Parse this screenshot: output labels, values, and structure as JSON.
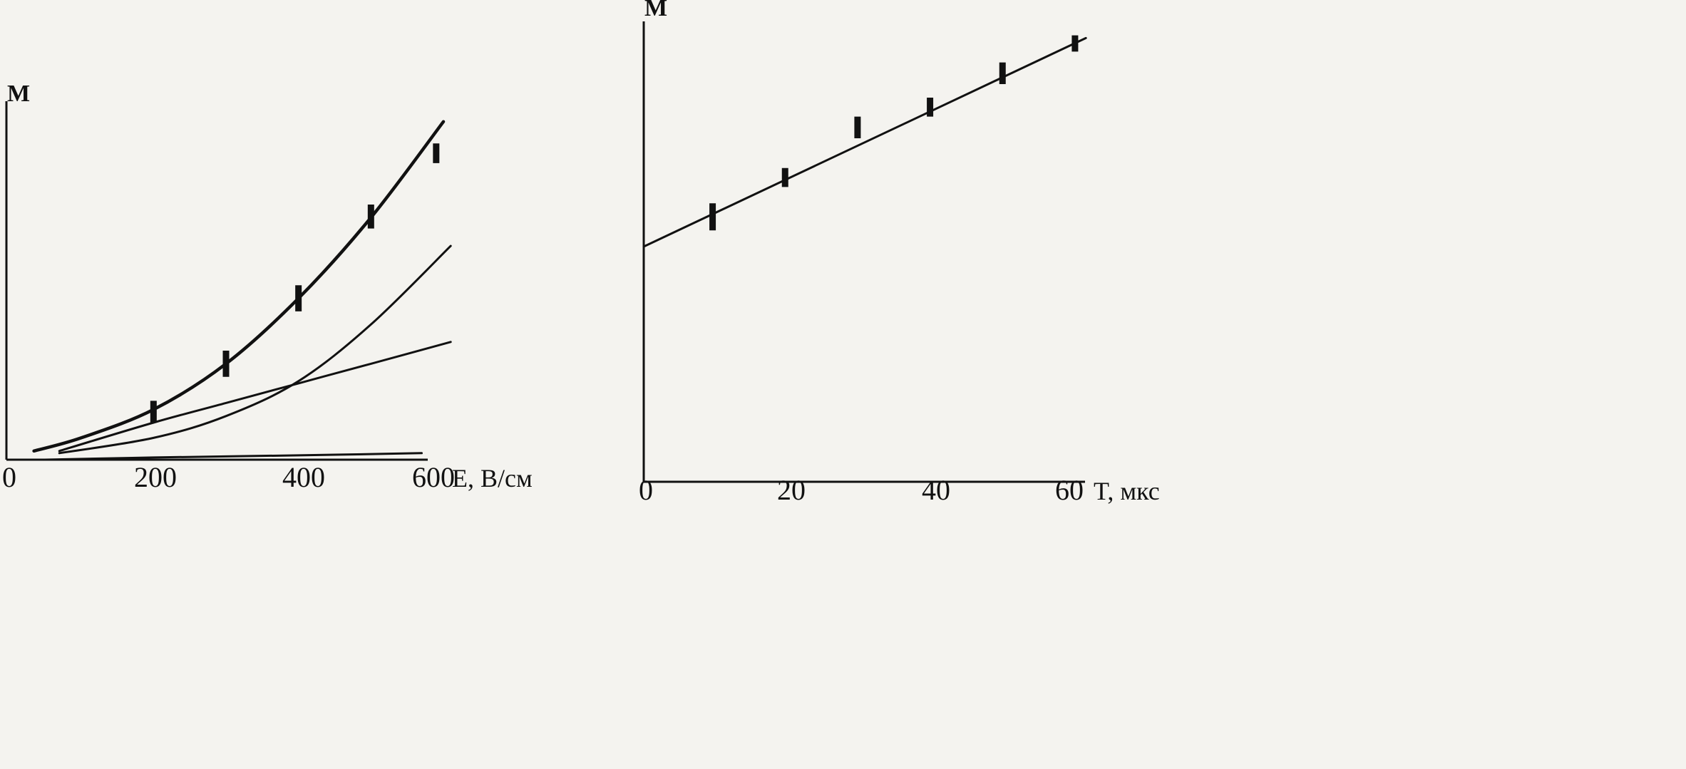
{
  "chart_data": [
    {
      "type": "line",
      "ylabel": "M",
      "xlabel": "E, В/см",
      "xlim": [
        0,
        600
      ],
      "x_ticks": [
        "0",
        "200",
        "400",
        "600"
      ],
      "grid": false,
      "curves": [
        {
          "style": "thick",
          "x": [
            35,
            100,
            200,
            300,
            400,
            500,
            600
          ],
          "y": [
            0.4,
            1.0,
            2.3,
            4.4,
            7.4,
            11.1,
            15.5
          ]
        },
        {
          "style": "thin",
          "x": [
            70,
            200,
            300,
            400,
            500,
            610
          ],
          "y": [
            0.3,
            1.0,
            2.0,
            3.6,
            6.2,
            9.8
          ]
        },
        {
          "style": "thin",
          "x": [
            70,
            200,
            300,
            400,
            500,
            610
          ],
          "y": [
            0.4,
            1.7,
            2.6,
            3.5,
            4.4,
            5.4
          ]
        },
        {
          "style": "thin",
          "x": [
            50,
            200,
            400,
            570
          ],
          "y": [
            0.0,
            0.1,
            0.2,
            0.3
          ]
        }
      ],
      "error_bars": [
        {
          "x": 200,
          "low": 1.7,
          "high": 2.7
        },
        {
          "x": 300,
          "low": 3.8,
          "high": 5.0
        },
        {
          "x": 400,
          "low": 6.8,
          "high": 8.0
        },
        {
          "x": 500,
          "low": 10.6,
          "high": 11.7
        },
        {
          "x": 590,
          "low": 13.6,
          "high": 14.5
        }
      ]
    },
    {
      "type": "line",
      "ylabel": "M",
      "xlabel": "T, мкс",
      "xlim": [
        0,
        60
      ],
      "x_ticks": [
        "0",
        "20",
        "40",
        "60"
      ],
      "grid": false,
      "curves": [
        {
          "style": "thin",
          "x": [
            0,
            61
          ],
          "y": [
            0,
            7.7
          ]
        }
      ],
      "error_bars": [
        {
          "x": 9.5,
          "low": 0.6,
          "high": 1.6
        },
        {
          "x": 19.5,
          "low": 2.2,
          "high": 2.9
        },
        {
          "x": 29.5,
          "low": 4.0,
          "high": 4.8
        },
        {
          "x": 39.5,
          "low": 4.8,
          "high": 5.5
        },
        {
          "x": 49.5,
          "low": 6.0,
          "high": 6.8
        },
        {
          "x": 59.5,
          "low": 7.2,
          "high": 7.8
        }
      ]
    }
  ]
}
